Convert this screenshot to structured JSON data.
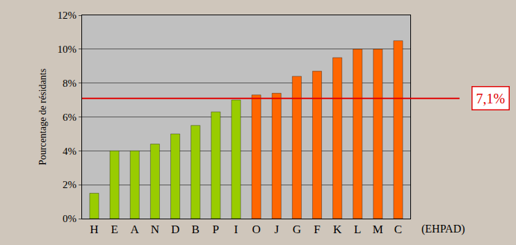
{
  "chart_data": {
    "type": "bar",
    "y_label": "Pourcentage de résidants",
    "x_label": "(EHPAD)",
    "categories": [
      "H",
      "E",
      "A",
      "N",
      "D",
      "B",
      "P",
      "I",
      "O",
      "J",
      "G",
      "F",
      "K",
      "L",
      "M",
      "C"
    ],
    "values": [
      1.5,
      4.0,
      4.0,
      4.4,
      5.0,
      5.5,
      6.3,
      7.0,
      7.3,
      7.4,
      8.4,
      8.7,
      9.5,
      10.0,
      10.0,
      10.5
    ],
    "colors": [
      "#99cc00",
      "#99cc00",
      "#99cc00",
      "#99cc00",
      "#99cc00",
      "#99cc00",
      "#99cc00",
      "#99cc00",
      "#ff6600",
      "#ff6600",
      "#ff6600",
      "#ff6600",
      "#ff6600",
      "#ff6600",
      "#ff6600",
      "#ff6600"
    ],
    "ylim": [
      0,
      12
    ],
    "yticks": [
      {
        "value": 0,
        "label": "0%"
      },
      {
        "value": 2,
        "label": "2%"
      },
      {
        "value": 4,
        "label": "4%"
      },
      {
        "value": 6,
        "label": "6%"
      },
      {
        "value": 8,
        "label": "8%"
      },
      {
        "value": 10,
        "label": "10%"
      },
      {
        "value": 12,
        "label": "12%"
      }
    ],
    "grid": true,
    "reference_line": {
      "value": 7.1,
      "label": "7,1%",
      "color": "#e00000"
    }
  }
}
